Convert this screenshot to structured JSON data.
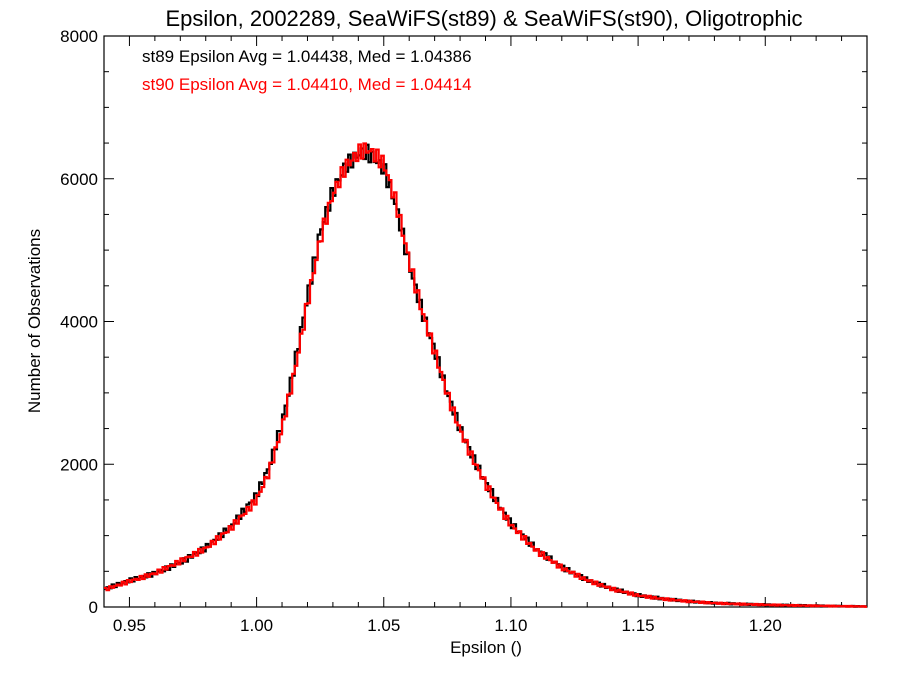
{
  "chart_data": {
    "type": "line",
    "style": "histogram-step",
    "title": "Epsilon, 2002289, SeaWiFS(st89) & SeaWiFS(st90), Oligotrophic",
    "xlabel": "Epsilon ()",
    "ylabel": "Number of Observations",
    "xlim": [
      0.94,
      1.24
    ],
    "ylim": [
      0,
      8000
    ],
    "x_ticks": [
      0.95,
      1.0,
      1.05,
      1.1,
      1.15,
      1.2
    ],
    "x_tick_labels": [
      "0.95",
      "1.00",
      "1.05",
      "1.10",
      "1.15",
      "1.20"
    ],
    "y_ticks": [
      0,
      2000,
      4000,
      6000,
      8000
    ],
    "y_tick_labels": [
      "0",
      "2000",
      "4000",
      "6000",
      "8000"
    ],
    "grid": false,
    "annotations": [
      {
        "text": "st89 Epsilon Avg = 1.04438, Med = 1.04386",
        "color": "#000000"
      },
      {
        "text": "st90 Epsilon Avg = 1.04410, Med = 1.04414",
        "color": "#ff0000"
      }
    ],
    "x": [
      0.94,
      0.95,
      0.96,
      0.97,
      0.98,
      0.99,
      1.0,
      1.005,
      1.01,
      1.015,
      1.02,
      1.025,
      1.03,
      1.035,
      1.04,
      1.043,
      1.045,
      1.05,
      1.055,
      1.06,
      1.065,
      1.07,
      1.075,
      1.08,
      1.085,
      1.09,
      1.095,
      1.1,
      1.11,
      1.12,
      1.13,
      1.14,
      1.15,
      1.16,
      1.17,
      1.18,
      1.19,
      1.2,
      1.21,
      1.22,
      1.23,
      1.24
    ],
    "series": [
      {
        "color": "#000000",
        "values": [
          250,
          370,
          470,
          620,
          830,
          1130,
          1570,
          1970,
          2580,
          3400,
          4350,
          5250,
          5820,
          6180,
          6340,
          6380,
          6320,
          6150,
          5600,
          4800,
          4150,
          3600,
          3000,
          2500,
          2100,
          1750,
          1450,
          1170,
          810,
          560,
          380,
          255,
          165,
          115,
          80,
          55,
          42,
          32,
          24,
          18,
          12,
          8
        ]
      },
      {
        "color": "#ff0000",
        "values": [
          240,
          360,
          470,
          640,
          820,
          1110,
          1500,
          1900,
          2500,
          3300,
          4250,
          5150,
          5780,
          6170,
          6360,
          6420,
          6380,
          6220,
          5650,
          4850,
          4150,
          3580,
          2980,
          2480,
          2080,
          1730,
          1420,
          1150,
          790,
          550,
          375,
          250,
          162,
          112,
          78,
          54,
          41,
          31,
          23,
          17,
          11,
          7
        ]
      }
    ]
  }
}
